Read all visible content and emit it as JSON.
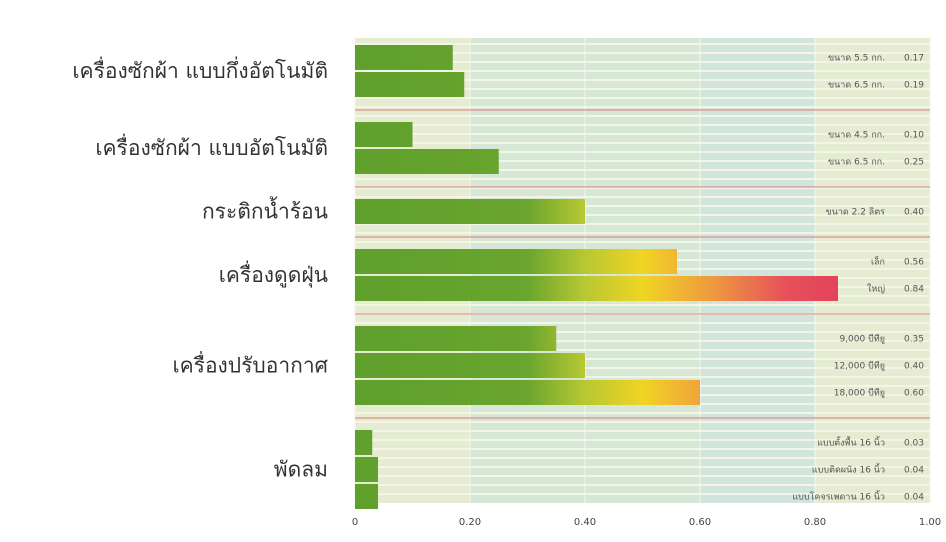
{
  "chart_data": {
    "type": "grouped-hbar",
    "groups": [
      {
        "name": "เครื่องซักผ้า แบบกึ่งอัตโนมัติ",
        "bars": [
          {
            "label": "ขนาด 5.5 กก.",
            "value": 0.17,
            "value_label": "0.17"
          },
          {
            "label": "ขนาด 6.5 กก.",
            "value": 0.19,
            "value_label": "0.19"
          }
        ]
      },
      {
        "name": "เครื่องซักผ้า แบบอัตโนมัติ",
        "bars": [
          {
            "label": "ขนาด 4.5 กก.",
            "value": 0.1,
            "value_label": "0.10"
          },
          {
            "label": "ขนาด 6.5 กก.",
            "value": 0.25,
            "value_label": "0.25"
          }
        ]
      },
      {
        "name": "กระติกน้ำร้อน",
        "bars": [
          {
            "label": "ขนาด 2.2 ลิตร",
            "value": 0.4,
            "value_label": "0.40"
          }
        ]
      },
      {
        "name": "เครื่องดูดฝุ่น",
        "bars": [
          {
            "label": "เล็ก",
            "value": 0.56,
            "value_label": "0.56"
          },
          {
            "label": "ใหญ่",
            "value": 0.84,
            "value_label": "0.84"
          }
        ]
      },
      {
        "name": "เครื่องปรับอากาศ",
        "bars": [
          {
            "label": "9,000 บีทียู",
            "value": 0.35,
            "value_label": "0.35"
          },
          {
            "label": "12,000 บีทียู",
            "value": 0.4,
            "value_label": "0.40"
          },
          {
            "label": "18,000 บีทียู",
            "value": 0.6,
            "value_label": "0.60"
          }
        ]
      },
      {
        "name": "พัดลม",
        "bars": [
          {
            "label": "แบบตั้งพื้น 16 นิ้ว",
            "value": 0.03,
            "value_label": "0.03"
          },
          {
            "label": "แบบติดผนัง 16 นิ้ว",
            "value": 0.04,
            "value_label": "0.04"
          },
          {
            "label": "แบบโคจรเพดาน 16 นิ้ว",
            "value": 0.04,
            "value_label": "0.04"
          }
        ]
      }
    ],
    "xlim": [
      0,
      1
    ],
    "xticks": [
      0,
      {
        "value": 0.2,
        "label": "0.20"
      },
      {
        "value": 0.4,
        "label": "0.40"
      },
      {
        "value": 0.6,
        "label": "0.60"
      },
      {
        "value": 0.8,
        "label": "0.80"
      },
      {
        "value": 1,
        "label": "1.00"
      }
    ]
  }
}
